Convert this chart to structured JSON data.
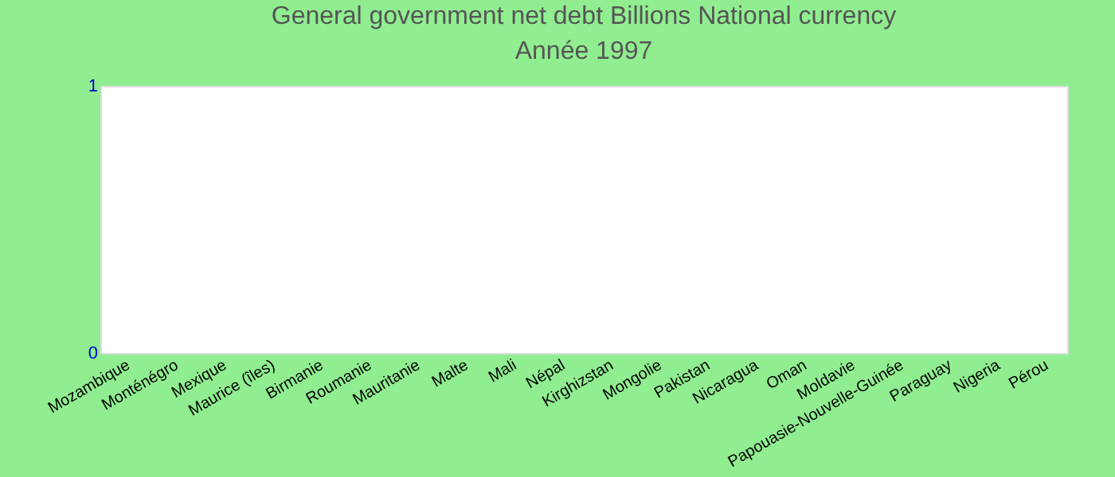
{
  "chart_data": {
    "type": "bar",
    "title": "General government net debt Billions National currency",
    "subtitle": "Année 1997",
    "categories": [
      "Mozambique",
      "Monténégro",
      "Mexique",
      "Maurice (îles)",
      "Birmanie",
      "Roumanie",
      "Mauritanie",
      "Malte",
      "Mali",
      "Népal",
      "Kirghizstan",
      "Mongolie",
      "Pakistan",
      "Nicaragua",
      "Oman",
      "Moldavie",
      "Papouasie-Nouvelle-Guinée",
      "Paraguay",
      "Nigeria",
      "Pérou"
    ],
    "values": [
      0,
      0,
      0,
      0,
      0,
      0,
      0,
      0,
      0,
      0,
      0,
      0,
      0,
      0,
      0,
      0,
      0,
      0,
      0,
      0
    ],
    "ylim": [
      0,
      1
    ],
    "yticks": [
      0,
      1
    ]
  }
}
